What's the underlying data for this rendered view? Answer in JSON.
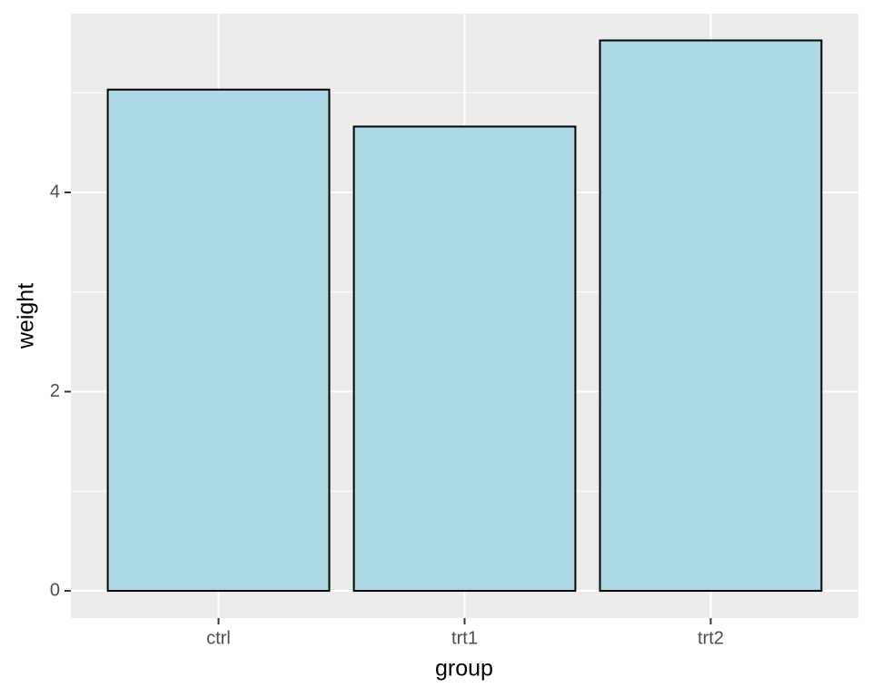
{
  "chart_data": {
    "type": "bar",
    "x_label": "group",
    "y_label": "weight",
    "categories": [
      "ctrl",
      "trt1",
      "trt2"
    ],
    "values": [
      5.032,
      4.661,
      5.526
    ],
    "color": "#add8e6",
    "edge_color": "#000000",
    "ylim": [
      -0.273,
      5.795
    ],
    "yticks": [
      0,
      2,
      4
    ],
    "y_minor_ticks": [
      1,
      3,
      5
    ],
    "grid": true
  }
}
